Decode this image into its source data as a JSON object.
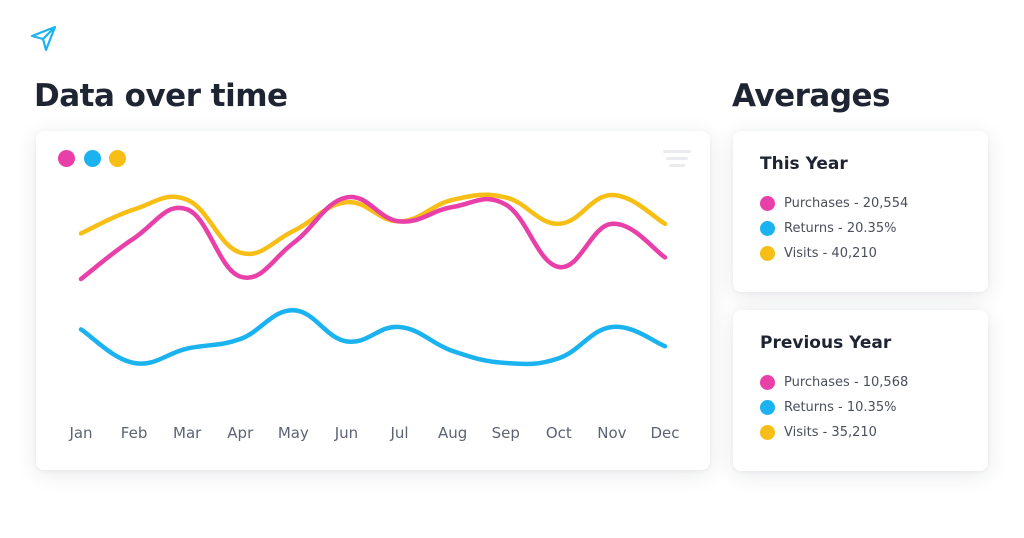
{
  "header": {
    "logo_icon": "paper-plane-icon"
  },
  "main": {
    "title": "Data over time"
  },
  "sidebar": {
    "title": "Averages",
    "cards": [
      {
        "title": "This Year",
        "items": [
          {
            "label": "Purchases - 20,554",
            "color": "#e83fa8"
          },
          {
            "label": "Returns - 20.35%",
            "color": "#1ab3ef"
          },
          {
            "label": "Visits - 40,210",
            "color": "#f7be16"
          }
        ]
      },
      {
        "title": "Previous Year",
        "items": [
          {
            "label": "Purchases - 10,568",
            "color": "#e83fa8"
          },
          {
            "label": "Returns - 10.35%",
            "color": "#1ab3ef"
          },
          {
            "label": "Visits - 35,210",
            "color": "#f7be16"
          }
        ]
      }
    ]
  },
  "chart_data": {
    "type": "line",
    "title": "Data over time",
    "xlabel": "",
    "ylabel": "",
    "x": [
      "Jan",
      "Feb",
      "Mar",
      "Apr",
      "May",
      "Jun",
      "Jul",
      "Aug",
      "Sep",
      "Oct",
      "Nov",
      "Dec"
    ],
    "ylim": [
      0,
      100
    ],
    "grid": false,
    "legend": "top-left",
    "menu_icon": "menu-icon",
    "series": [
      {
        "name": "Visits",
        "color": "#f7be16",
        "values": [
          74,
          84,
          88,
          66,
          75,
          87,
          79,
          88,
          89,
          78,
          90,
          78
        ]
      },
      {
        "name": "Purchases",
        "color": "#e83fa8",
        "values": [
          55,
          72,
          84,
          56,
          70,
          89,
          79,
          85,
          86,
          60,
          78,
          64
        ]
      },
      {
        "name": "Returns",
        "color": "#1ab3ef",
        "values": [
          34,
          20,
          26,
          30,
          42,
          29,
          35,
          25,
          20,
          22,
          35,
          27
        ]
      }
    ]
  }
}
